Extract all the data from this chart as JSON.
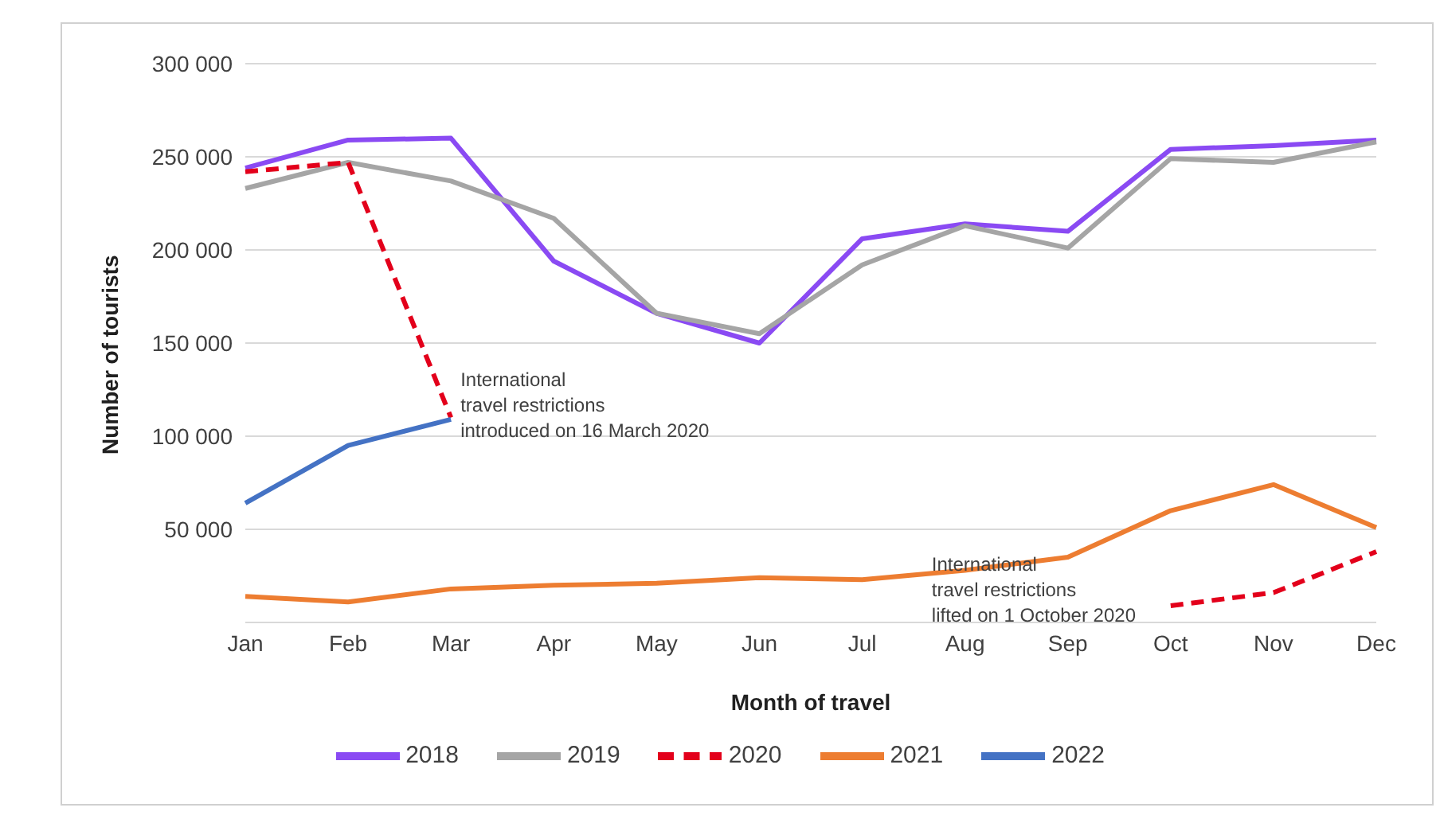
{
  "chart_data": {
    "type": "line",
    "xlabel": "Month of travel",
    "ylabel": "Number of tourists",
    "categories": [
      "Jan",
      "Feb",
      "Mar",
      "Apr",
      "May",
      "Jun",
      "Jul",
      "Aug",
      "Sep",
      "Oct",
      "Nov",
      "Dec"
    ],
    "series": [
      {
        "name": "2018",
        "color": "#8a4af3",
        "values": [
          244000,
          259000,
          260000,
          194000,
          166000,
          150000,
          206000,
          214000,
          210000,
          254000,
          256000,
          259000
        ]
      },
      {
        "name": "2019",
        "color": "#a5a5a5",
        "values": [
          233000,
          247000,
          237000,
          217000,
          166000,
          155000,
          192000,
          213000,
          201000,
          249000,
          247000,
          258000
        ]
      },
      {
        "name": "2020",
        "color": "#e3001b",
        "line_style": "dashed",
        "values": [
          242000,
          247000,
          110000,
          null,
          null,
          null,
          null,
          null,
          null,
          9000,
          16000,
          38000
        ]
      },
      {
        "name": "2021",
        "color": "#ed7d31",
        "values": [
          14000,
          11000,
          18000,
          20000,
          21000,
          24000,
          23000,
          28000,
          35000,
          60000,
          74000,
          51000
        ]
      },
      {
        "name": "2022",
        "color": "#4472c4",
        "values": [
          64000,
          95000,
          109000,
          null,
          null,
          null,
          null,
          null,
          null,
          null,
          null,
          null
        ]
      }
    ],
    "ylim": [
      0,
      300000
    ],
    "yticks": [
      {
        "value": 0,
        "label": null
      },
      {
        "value": 50000,
        "label": "50 000"
      },
      {
        "value": 100000,
        "label": "100 000"
      },
      {
        "value": 150000,
        "label": "150 000"
      },
      {
        "value": 200000,
        "label": "200 000"
      },
      {
        "value": 250000,
        "label": "250 000"
      },
      {
        "value": 300000,
        "label": "300 000"
      }
    ],
    "annotations": [
      {
        "text": "International\ntravel restrictions\nintroduced  on 16 March 2020",
        "x": "Mar",
        "y": 110000
      },
      {
        "text": "International\ntravel restrictions\nlifted on 1 October 2020",
        "x": "Oct",
        "y": 9000
      }
    ],
    "grid": "y",
    "legend": "bottom",
    "marker": "none",
    "line_style": "solid"
  }
}
